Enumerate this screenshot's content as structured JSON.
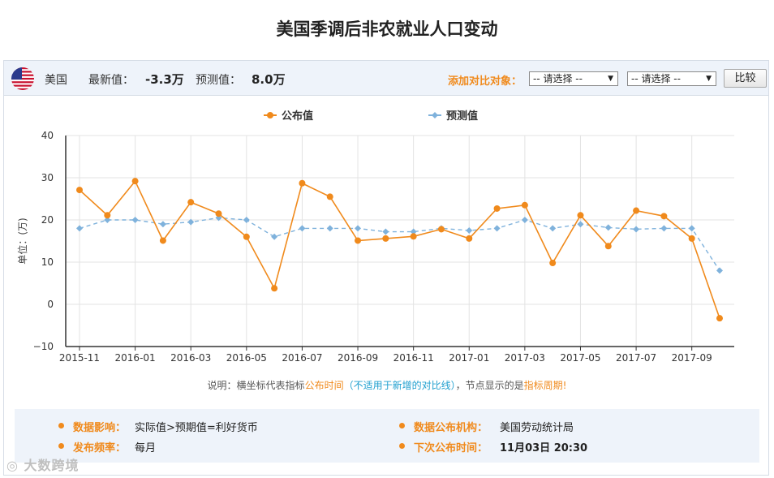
{
  "page": {
    "title": "美国季调后非农就业人口变动"
  },
  "header": {
    "flag_icon": "us-flag-icon",
    "country": "美国",
    "latest_label": "最新值：",
    "latest_value": "-3.3万",
    "forecast_label": "预测值：",
    "forecast_value": "8.0万",
    "compare_label": "添加对比对象：",
    "select1": "-- 请选择 --",
    "select2": "-- 请选择 --",
    "compare_button": "比较"
  },
  "colors": {
    "published": "#f08a1c",
    "forecast": "#7fb2dc",
    "grid": "#e3e3e3",
    "accent": "#f08a1c"
  },
  "chart_data": {
    "type": "line",
    "ylabel": "单位：(万)",
    "ylim": [
      -10,
      40
    ],
    "yticks": [
      -10,
      0,
      10,
      20,
      30,
      40
    ],
    "grid": true,
    "legend_position": "top-center",
    "x_tick_labels": [
      "2015-11",
      "2016-01",
      "2016-03",
      "2016-05",
      "2016-07",
      "2016-09",
      "2016-11",
      "2017-01",
      "2017-03",
      "2017-05",
      "2017-07",
      "2017-09"
    ],
    "categories": [
      "2015-11",
      "2015-12",
      "2016-01",
      "2016-02",
      "2016-03",
      "2016-04",
      "2016-05",
      "2016-06",
      "2016-07",
      "2016-08",
      "2016-09",
      "2016-10",
      "2016-11",
      "2016-12",
      "2017-01",
      "2017-02",
      "2017-03",
      "2017-04",
      "2017-05",
      "2017-06",
      "2017-07",
      "2017-08",
      "2017-09",
      "2017-10"
    ],
    "series": [
      {
        "name": "公布值",
        "color": "#f08a1c",
        "marker": "circle",
        "values": [
          27.1,
          21.1,
          29.2,
          15.1,
          24.2,
          21.5,
          16.0,
          3.8,
          28.7,
          25.5,
          15.1,
          15.6,
          16.1,
          17.8,
          15.6,
          22.7,
          23.5,
          9.8,
          21.1,
          13.8,
          22.2,
          20.9,
          15.6,
          -3.3
        ]
      },
      {
        "name": "预测值",
        "color": "#7fb2dc",
        "marker": "diamond",
        "values": [
          18.0,
          20.0,
          20.0,
          19.0,
          19.5,
          20.5,
          20.0,
          16.0,
          18.0,
          18.0,
          18.0,
          17.2,
          17.2,
          18.0,
          17.5,
          18.0,
          20.0,
          18.0,
          19.0,
          18.2,
          17.8,
          18.0,
          18.0,
          8.0
        ]
      }
    ]
  },
  "note": {
    "part1": "说明：横坐标代表指标",
    "part2": "公布时间",
    "part3": "（不适用于新增的对比线）",
    "part4": "，节点显示的是",
    "part5": "指标周期",
    "part6": "!"
  },
  "info": {
    "impact_label": "数据影响：",
    "impact_value": "实际值>预期值=利好货币",
    "agency_label": "数据公布机构：",
    "agency_value": "美国劳动统计局",
    "frequency_label": "发布频率：",
    "frequency_value": "每月",
    "next_label": "下次公布时间：",
    "next_value": "11月03日 20:30"
  },
  "watermark": "大数跨境"
}
